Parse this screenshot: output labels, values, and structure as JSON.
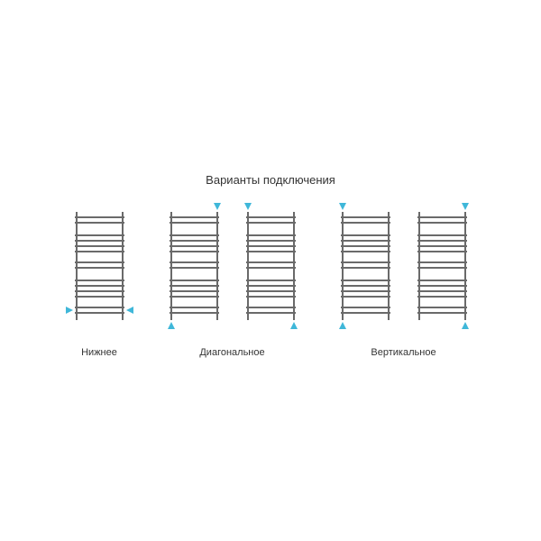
{
  "title": "Варианты подключения",
  "colors": {
    "background": "#ffffff",
    "stroke": "#6a6a6a",
    "arrow": "#3fb7d9",
    "text": "#333333"
  },
  "title_fontsize": 13,
  "label_fontsize": 11,
  "radiator": {
    "width": 55,
    "height": 120,
    "stroke_width": 2,
    "bar_groups": [
      {
        "start": 6,
        "count": 2,
        "pitch": 6
      },
      {
        "start": 26,
        "count": 4,
        "pitch": 6
      },
      {
        "start": 56,
        "count": 2,
        "pitch": 6
      },
      {
        "start": 76,
        "count": 4,
        "pitch": 6
      },
      {
        "start": 106,
        "count": 2,
        "pitch": 6
      }
    ]
  },
  "groups": [
    {
      "label": "Нижнее",
      "variants": [
        {
          "arrows": [
            {
              "pos": "side-bottom-left",
              "dir": "right"
            },
            {
              "pos": "side-bottom-right",
              "dir": "left"
            }
          ]
        }
      ]
    },
    {
      "label": "Диагональное",
      "variants": [
        {
          "arrows": [
            {
              "pos": "top-right",
              "dir": "down"
            },
            {
              "pos": "bottom-left",
              "dir": "up"
            }
          ]
        },
        {
          "arrows": [
            {
              "pos": "top-left",
              "dir": "down"
            },
            {
              "pos": "bottom-right",
              "dir": "up"
            }
          ]
        }
      ]
    },
    {
      "label": "Вертикальное",
      "variants": [
        {
          "arrows": [
            {
              "pos": "top-left",
              "dir": "down"
            },
            {
              "pos": "bottom-left",
              "dir": "up"
            }
          ]
        },
        {
          "arrows": [
            {
              "pos": "top-right",
              "dir": "down"
            },
            {
              "pos": "bottom-right",
              "dir": "up"
            }
          ]
        }
      ]
    }
  ]
}
